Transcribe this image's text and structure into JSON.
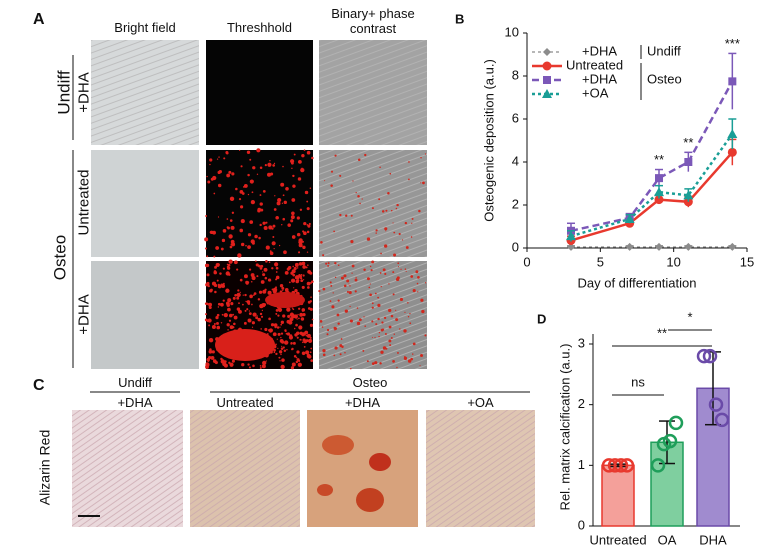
{
  "figure": {
    "a": {
      "label": "A",
      "columns": [
        "Bright field",
        "Threshhold",
        "Binary+ phase contrast"
      ],
      "row_groups": [
        "Undiff",
        "Osteo"
      ],
      "rows": [
        "+DHA",
        "Untreated",
        "+DHA"
      ]
    },
    "c": {
      "label": "C",
      "groups": [
        "Undiff",
        "Osteo"
      ],
      "columns": [
        "+DHA",
        "Untreated",
        "+DHA",
        "+OA"
      ],
      "stain": "Alizarin Red"
    }
  },
  "chart_data": [
    {
      "type": "line",
      "panel": "B",
      "x_label": "Day of differentiation",
      "y_label": "Osteogenic deposition (a.u.)",
      "x": [
        3,
        7,
        9,
        11,
        14
      ],
      "xlim": [
        0,
        15
      ],
      "xticks": [
        0,
        5,
        10,
        15
      ],
      "ylim": [
        0,
        10
      ],
      "yticks": [
        0,
        2,
        4,
        6,
        8,
        10
      ],
      "series": [
        {
          "name": "+DHA",
          "color": "#8c8c8c",
          "values": [
            0.05,
            0.05,
            0.05,
            0.05,
            0.05
          ],
          "errors": [
            0.05,
            0.05,
            0.05,
            0.05,
            0.05
          ]
        },
        {
          "name": "Untreated",
          "color": "#e8392e",
          "values": [
            0.35,
            1.15,
            2.25,
            2.15,
            4.45
          ],
          "errors": [
            0.2,
            0.15,
            0.2,
            0.25,
            0.6
          ]
        },
        {
          "name": "+DHA",
          "color": "#7b58b8",
          "values": [
            0.8,
            1.4,
            3.25,
            4.0,
            7.75
          ],
          "errors": [
            0.35,
            0.2,
            0.4,
            0.45,
            1.3
          ]
        },
        {
          "name": "+OA",
          "color": "#1a9e96",
          "values": [
            0.55,
            1.35,
            2.6,
            2.45,
            5.3
          ],
          "errors": [
            0.25,
            0.2,
            0.3,
            0.3,
            0.7
          ]
        }
      ],
      "legend_groups": [
        "Undiff",
        "Osteo"
      ],
      "annotations": [
        {
          "text": "**",
          "x": 9
        },
        {
          "text": "**",
          "x": 11
        },
        {
          "text": "***",
          "x": 14
        }
      ]
    },
    {
      "type": "bar",
      "panel": "D",
      "y_label": "Rel. matrix calcification (a.u.)",
      "categories": [
        "Untreated",
        "OA",
        "DHA"
      ],
      "values": [
        1.0,
        1.38,
        2.27
      ],
      "errors": [
        0.02,
        0.35,
        0.6
      ],
      "colors": [
        "#e8392e",
        "#1f9e5a",
        "#6a4aa8"
      ],
      "points": [
        [
          1.0,
          1.0,
          1.0,
          1.0
        ],
        [
          1.0,
          1.35,
          1.4,
          1.7
        ],
        [
          2.8,
          2.8,
          2.0,
          1.75
        ]
      ],
      "ylim": [
        0,
        3
      ],
      "yticks": [
        0,
        1,
        2,
        3
      ],
      "significance": [
        "ns",
        "**",
        "*"
      ]
    }
  ]
}
